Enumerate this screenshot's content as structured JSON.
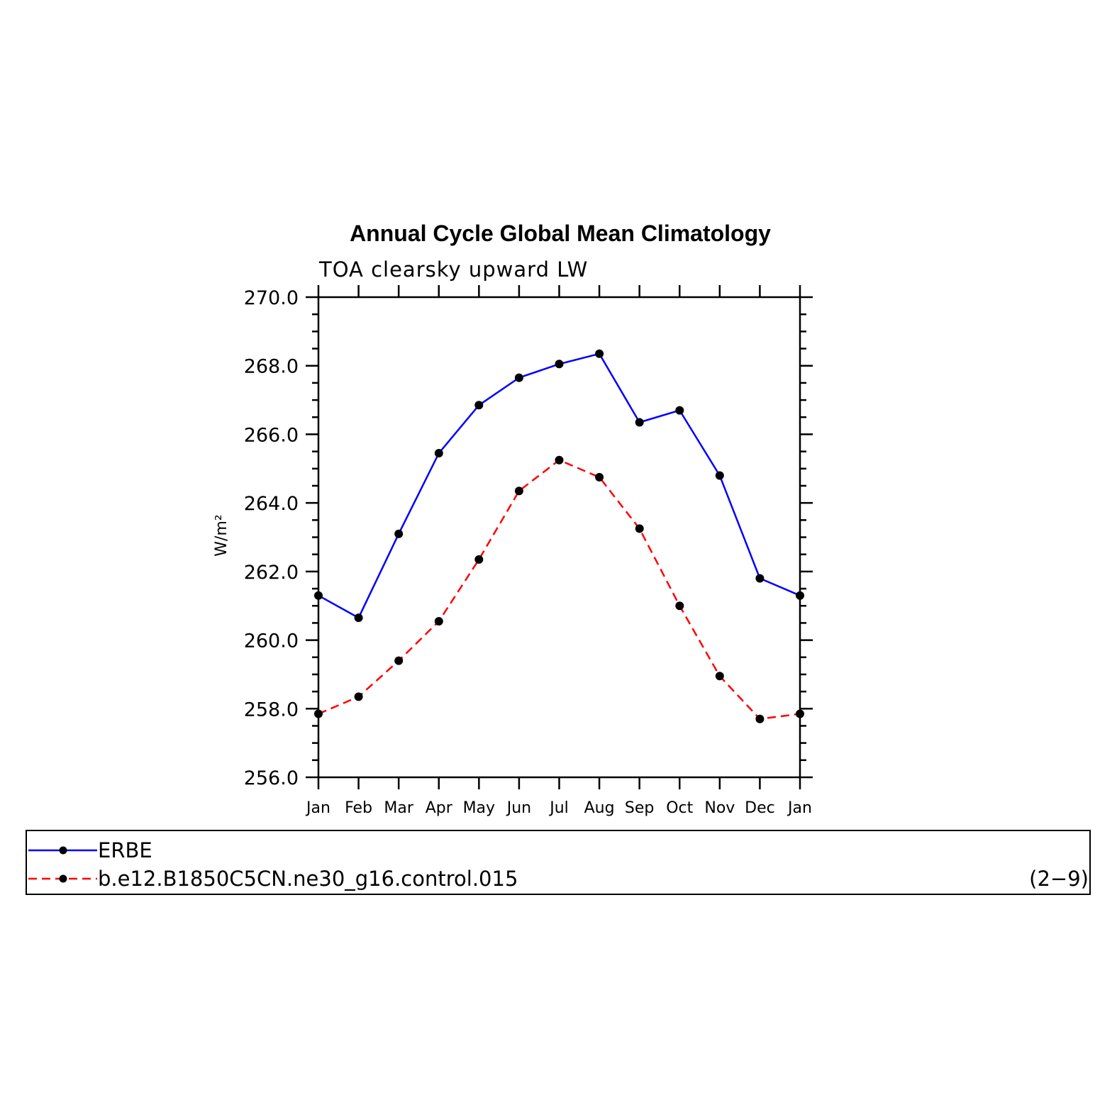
{
  "chart_data": {
    "type": "line",
    "title": "Annual Cycle Global Mean Climatology",
    "subtitle": "TOA clearsky upward LW",
    "ylabel": "W/m²",
    "ylim": [
      256.0,
      270.0
    ],
    "yticks": [
      "256.0",
      "258.0",
      "260.0",
      "262.0",
      "264.0",
      "266.0",
      "268.0",
      "270.0"
    ],
    "categories": [
      "Jan",
      "Feb",
      "Mar",
      "Apr",
      "May",
      "Jun",
      "Jul",
      "Aug",
      "Sep",
      "Oct",
      "Nov",
      "Dec",
      "Jan"
    ],
    "series": [
      {
        "name": "ERBE",
        "color": "#0000ff",
        "dashed": false,
        "values": [
          261.3,
          260.65,
          263.1,
          265.45,
          266.85,
          267.65,
          268.05,
          268.35,
          266.35,
          266.7,
          264.8,
          261.8,
          261.3
        ]
      },
      {
        "name": "b.e12.B1850C5CN.ne30_g16.control.015",
        "color": "#ff0000",
        "dashed": true,
        "values": [
          257.85,
          258.35,
          259.4,
          260.55,
          262.35,
          264.35,
          265.25,
          264.75,
          263.25,
          261.0,
          258.95,
          257.7,
          257.85
        ]
      }
    ],
    "grid": false,
    "legend_position": "bottom",
    "annotation": "(2−9)"
  }
}
